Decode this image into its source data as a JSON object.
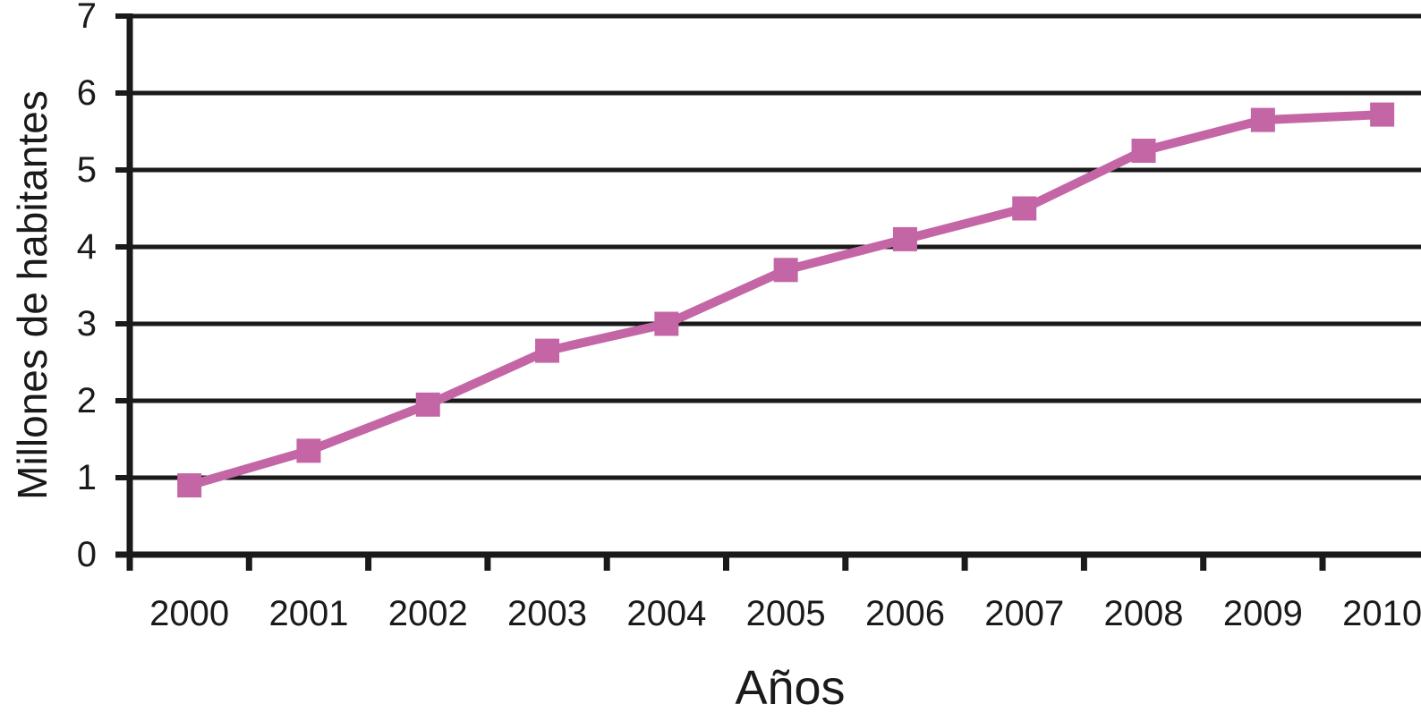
{
  "chart_data": {
    "type": "line",
    "xlabel": "Años",
    "ylabel": "Millones de habitantes",
    "categories": [
      "2000",
      "2001",
      "2002",
      "2003",
      "2004",
      "2005",
      "2006",
      "2007",
      "2008",
      "2009",
      "2010"
    ],
    "series": [
      {
        "name": "Millones de habitantes",
        "values": [
          0.9,
          1.35,
          1.95,
          2.65,
          3.0,
          3.7,
          4.1,
          4.5,
          5.25,
          5.65,
          5.72
        ],
        "color": "#C466A6",
        "marker": "square"
      }
    ],
    "ylim": [
      0,
      7
    ],
    "yticks": [
      0,
      1,
      2,
      3,
      4,
      5,
      6,
      7
    ],
    "grid": "horizontal",
    "legend_position": "none",
    "axis_color": "#1A1A1A",
    "background_color": "#FFFFFF"
  }
}
